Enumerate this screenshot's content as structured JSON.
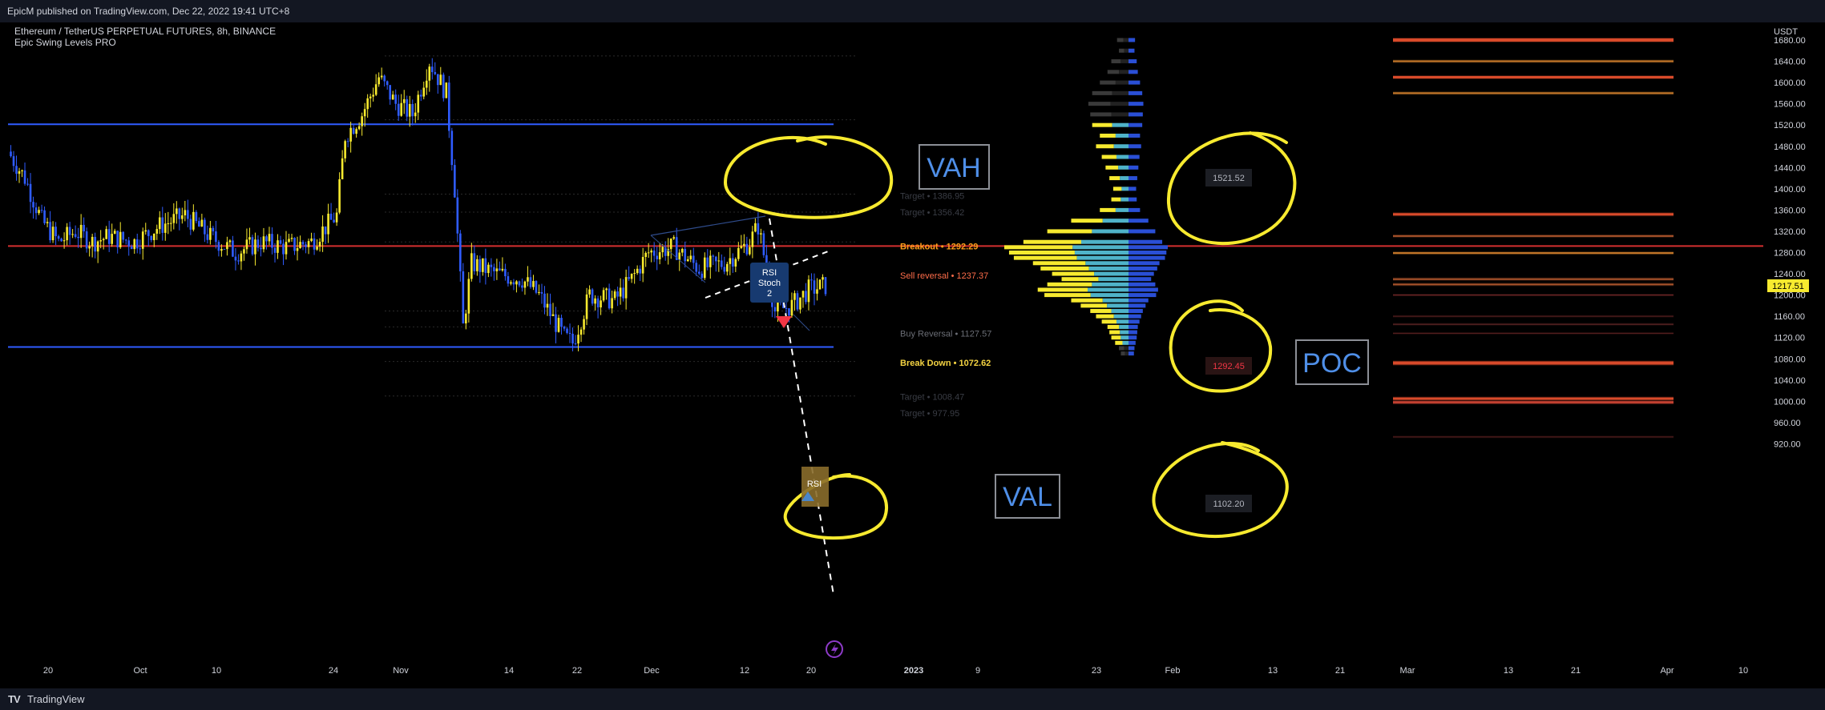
{
  "header": {
    "published": "EpicM published on TradingView.com, Dec 22, 2022 19:41 UTC+8",
    "symbol": "Ethereum / TetherUS PERPETUAL FUTURES, 8h, BINANCE",
    "indicator": "Epic Swing Levels PRO"
  },
  "footer": {
    "brand_mark": "TV",
    "brand": "TradingView"
  },
  "annotations": {
    "vah": "VAH",
    "val": "VAL",
    "poc": "POC",
    "vah_value": "1521.52",
    "poc_value": "1292.45",
    "val_value": "1102.20",
    "signal_top": [
      "RSI",
      "Stoch",
      "2"
    ],
    "signal_bottom": "RSI"
  },
  "levels": [
    {
      "label": "Target • 1386.95",
      "color": "#3a3d45"
    },
    {
      "label": "Target • 1356.42",
      "color": "#3a3d45"
    },
    {
      "label": "Breakout • 1292.29",
      "color": "#ff9f1a"
    },
    {
      "label": "Sell reversal • 1237.37",
      "color": "#ff6d4a"
    },
    {
      "label": "Buy Reversal • 1127.57",
      "color": "#6b6e76"
    },
    {
      "label": "Break Down • 1072.62",
      "color": "#f5d442"
    },
    {
      "label": "Target • 1008.47",
      "color": "#3a3d45"
    },
    {
      "label": "Target • 977.95",
      "color": "#3a3d45"
    }
  ],
  "chart_data": {
    "type": "candlestick",
    "symbol": "ETHUSDT.P",
    "timeframe": "8h",
    "price_unit": "USDT",
    "ylim": [
      900,
      1700
    ],
    "y_ticks": [
      "1680.00",
      "1640.00",
      "1600.00",
      "1560.00",
      "1520.00",
      "1480.00",
      "1440.00",
      "1400.00",
      "1360.00",
      "1320.00",
      "1280.00",
      "1240.00",
      "1200.00",
      "1160.00",
      "1120.00",
      "1080.00",
      "1040.00",
      "1000.00",
      "960.00",
      "920.00"
    ],
    "x_ticks": [
      "20",
      "Oct",
      "10",
      "24",
      "Nov",
      "14",
      "22",
      "Dec",
      "12",
      "20",
      "2023",
      "9",
      "23",
      "Feb",
      "13",
      "21",
      "Mar",
      "13",
      "21",
      "Apr",
      "10"
    ],
    "last_price": "1217.51",
    "horizontal_lines": [
      {
        "price": 1521.52,
        "color": "#2f5cff"
      },
      {
        "price": 1292.29,
        "color": "#d32f2f"
      },
      {
        "price": 1102.2,
        "color": "#2f5cff"
      }
    ],
    "close_path": [
      [
        "Sep 16",
        1470
      ],
      [
        "Sep 18",
        1420
      ],
      [
        "Sep 20",
        1340
      ],
      [
        "Sep 22",
        1300
      ],
      [
        "Sep 24",
        1320
      ],
      [
        "Sep 26",
        1300
      ],
      [
        "Sep 28",
        1310
      ],
      [
        "Oct 1",
        1300
      ],
      [
        "Oct 4",
        1330
      ],
      [
        "Oct 7",
        1350
      ],
      [
        "Oct 10",
        1310
      ],
      [
        "Oct 13",
        1280
      ],
      [
        "Oct 16",
        1300
      ],
      [
        "Oct 19",
        1290
      ],
      [
        "Oct 22",
        1300
      ],
      [
        "Oct 25",
        1350
      ],
      [
        "Oct 26",
        1500
      ],
      [
        "Oct 28",
        1540
      ],
      [
        "Oct 30",
        1610
      ],
      [
        "Nov 1",
        1560
      ],
      [
        "Nov 3",
        1540
      ],
      [
        "Nov 5",
        1640
      ],
      [
        "Nov 7",
        1580
      ],
      [
        "Nov 8",
        1400
      ],
      [
        "Nov 9",
        1140
      ],
      [
        "Nov 10",
        1260
      ],
      [
        "Nov 13",
        1240
      ],
      [
        "Nov 16",
        1230
      ],
      [
        "Nov 18",
        1200
      ],
      [
        "Nov 21",
        1120
      ],
      [
        "Nov 22",
        1110
      ],
      [
        "Nov 24",
        1200
      ],
      [
        "Nov 27",
        1190
      ],
      [
        "Nov 29",
        1230
      ],
      [
        "Dec 1",
        1280
      ],
      [
        "Dec 4",
        1290
      ],
      [
        "Dec 7",
        1250
      ],
      [
        "Dec 10",
        1260
      ],
      [
        "Dec 13",
        1300
      ],
      [
        "Dec 14",
        1330
      ],
      [
        "Dec 16",
        1170
      ],
      [
        "Dec 18",
        1180
      ],
      [
        "Dec 20",
        1210
      ],
      [
        "Dec 22",
        1217.51
      ]
    ],
    "series": [
      {
        "name": "Volume profile",
        "type": "horizontal-histogram",
        "poc": 1292.45,
        "vah": 1521.52,
        "val": 1102.2,
        "bins": [
          [
            1680,
            12
          ],
          [
            1660,
            10
          ],
          [
            1640,
            18
          ],
          [
            1620,
            22
          ],
          [
            1600,
            30
          ],
          [
            1580,
            38
          ],
          [
            1560,
            42
          ],
          [
            1540,
            40
          ],
          [
            1520,
            38
          ],
          [
            1500,
            30
          ],
          [
            1480,
            34
          ],
          [
            1460,
            28
          ],
          [
            1440,
            24
          ],
          [
            1420,
            20
          ],
          [
            1400,
            16
          ],
          [
            1380,
            18
          ],
          [
            1360,
            30
          ],
          [
            1340,
            60
          ],
          [
            1320,
            85
          ],
          [
            1300,
            110
          ],
          [
            1290,
            130
          ],
          [
            1280,
            125
          ],
          [
            1270,
            120
          ],
          [
            1260,
            100
          ],
          [
            1250,
            92
          ],
          [
            1240,
            80
          ],
          [
            1230,
            70
          ],
          [
            1220,
            85
          ],
          [
            1210,
            95
          ],
          [
            1200,
            88
          ],
          [
            1190,
            60
          ],
          [
            1180,
            50
          ],
          [
            1170,
            40
          ],
          [
            1160,
            34
          ],
          [
            1150,
            28
          ],
          [
            1140,
            22
          ],
          [
            1130,
            20
          ],
          [
            1120,
            18
          ],
          [
            1110,
            14
          ],
          [
            1100,
            10
          ],
          [
            1090,
            8
          ]
        ]
      }
    ]
  }
}
